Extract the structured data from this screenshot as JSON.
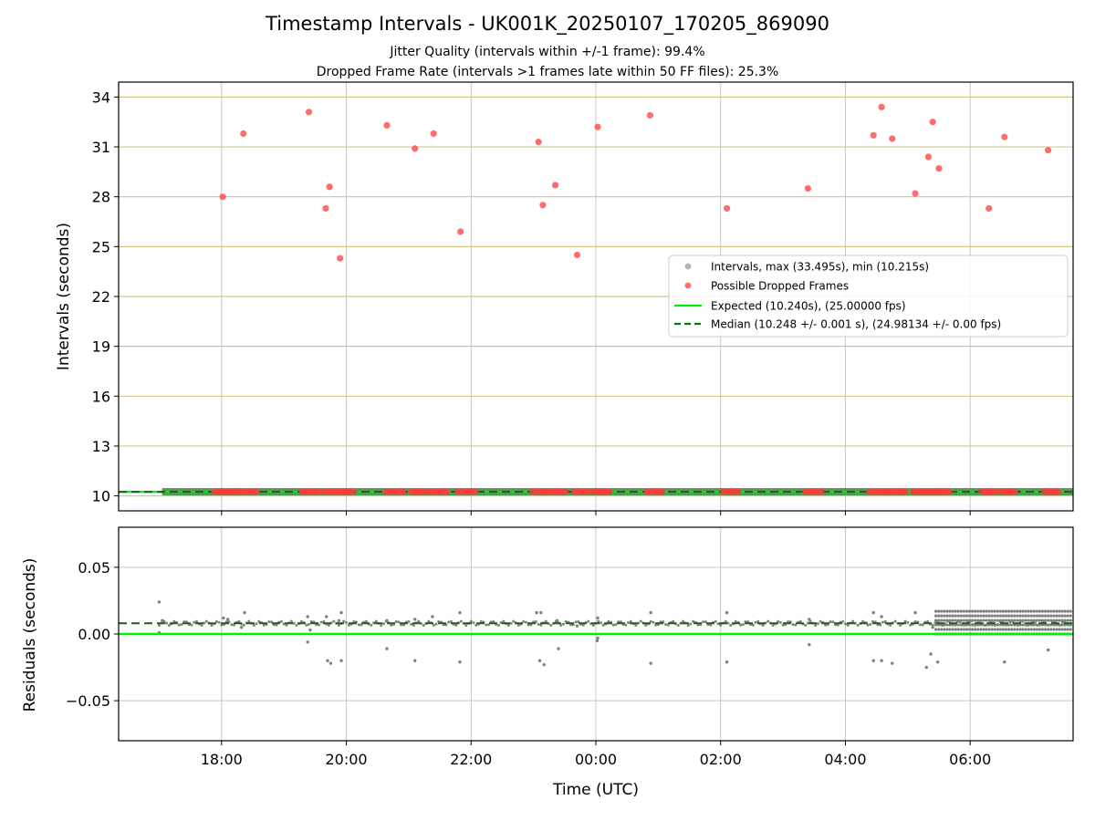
{
  "title": "Timestamp Intervals - UK001K_20250107_170205_869090",
  "subtitle_1": "Jitter Quality (intervals within +/-1 frame): 99.4%",
  "subtitle_2": "Dropped Frame Rate (intervals >1 frames late within 50 FF files): 25.3%",
  "colors": {
    "intervals": "#808080",
    "dropped": "#ff3b3b",
    "expected": "#00ee00",
    "median": "#008000",
    "hgrid_top": "#d4c68a",
    "vgrid": "#c8c8c8"
  },
  "chart_data": [
    {
      "type": "scatter",
      "panel": "top",
      "xlabel": "",
      "ylabel": "Intervals (seconds)",
      "x_unit": "hours since 00:00 UTC on 2025-01-08 (negative = 2025-01-07)",
      "xlim": [
        -7.65,
        7.65
      ],
      "ylim": [
        9.1,
        34.9
      ],
      "yticks": [
        10,
        13,
        16,
        19,
        22,
        25,
        28,
        31,
        34
      ],
      "ytick_labels": [
        "10",
        "13",
        "16",
        "19",
        "22",
        "25",
        "28",
        "31",
        "34"
      ],
      "grid": true,
      "legend_position": "center-right",
      "legend": [
        "Intervals, max (33.495s), min (10.215s)",
        "Possible Dropped Frames",
        "Expected (10.240s), (25.00000 fps)",
        "Median (10.248 +/- 0.001 s), (24.98134 +/- 0.00 fps)"
      ],
      "series": [
        {
          "name": "Intervals, max (33.495s), min (10.215s)",
          "style": "dense band of points",
          "x_range": [
            -6.95,
            7.65
          ],
          "y": 10.25
        },
        {
          "name": "Possible Dropped Frames",
          "points": [
            [
              -5.98,
              28.0
            ],
            [
              -5.65,
              31.8
            ],
            [
              -4.6,
              33.1
            ],
            [
              -4.33,
              27.3
            ],
            [
              -4.27,
              28.6
            ],
            [
              -4.1,
              24.3
            ],
            [
              -3.35,
              32.3
            ],
            [
              -2.9,
              30.9
            ],
            [
              -2.6,
              31.8
            ],
            [
              -2.17,
              25.9
            ],
            [
              -0.92,
              31.3
            ],
            [
              -0.85,
              27.5
            ],
            [
              -0.65,
              28.7
            ],
            [
              -0.3,
              24.5
            ],
            [
              0.03,
              32.2
            ],
            [
              0.87,
              32.9
            ],
            [
              2.1,
              27.3
            ],
            [
              3.4,
              28.5
            ],
            [
              4.45,
              31.7
            ],
            [
              4.58,
              33.4
            ],
            [
              4.75,
              31.5
            ],
            [
              5.12,
              28.2
            ],
            [
              5.33,
              30.4
            ],
            [
              5.4,
              32.5
            ],
            [
              5.5,
              29.7
            ],
            [
              6.3,
              27.3
            ],
            [
              6.55,
              31.6
            ],
            [
              7.25,
              30.8
            ]
          ],
          "baseline_points_y": 10.25,
          "baseline_points_x": [
            -6.05,
            -5.9,
            -5.78,
            -5.65,
            -5.5,
            -4.65,
            -4.5,
            -4.3,
            -4.18,
            -4.05,
            -3.95,
            -3.3,
            -3.15,
            -2.9,
            -2.8,
            -2.6,
            -2.45,
            -2.15,
            -2.0,
            -0.95,
            -0.82,
            -0.68,
            -0.55,
            -0.28,
            -0.15,
            0.05,
            0.15,
            0.88,
            1.0,
            2.1,
            2.22,
            3.42,
            3.55,
            4.45,
            4.58,
            4.7,
            4.82,
            4.9,
            5.15,
            5.28,
            5.38,
            5.5,
            5.6,
            6.25,
            6.35,
            6.55,
            6.65,
            7.25,
            7.35
          ]
        },
        {
          "name": "Expected (10.240s), (25.00000 fps)",
          "y": 10.24
        },
        {
          "name": "Median (10.248 +/- 0.001 s), (24.98134 +/- 0.00 fps)",
          "y": 10.248
        }
      ]
    },
    {
      "type": "scatter",
      "panel": "bottom",
      "xlabel": "Time (UTC)",
      "ylabel": "Residuals (seconds)",
      "x_unit": "hours since 00:00 UTC on 2025-01-08 (negative = 2025-01-07)",
      "xlim": [
        -7.65,
        7.65
      ],
      "ylim": [
        -0.08,
        0.08
      ],
      "yticks": [
        0.05,
        0.0,
        -0.05
      ],
      "ytick_labels": [
        "0.05",
        "0.00",
        "−0.05"
      ],
      "xticks": [
        -6,
        -4,
        -2,
        0,
        2,
        4,
        6
      ],
      "xtick_labels": [
        "18:00",
        "20:00",
        "22:00",
        "00:00",
        "02:00",
        "04:00",
        "06:00"
      ],
      "grid": true,
      "series": [
        {
          "name": "Residuals",
          "baseline_y": 0.008,
          "points": [
            [
              -7.0,
              0.024
            ],
            [
              -7.0,
              0.001
            ],
            [
              -6.95,
              0.01
            ],
            [
              -5.97,
              0.012
            ],
            [
              -5.9,
              0.011
            ],
            [
              -5.63,
              0.016
            ],
            [
              -5.68,
              0.005
            ],
            [
              -4.62,
              0.013
            ],
            [
              -4.62,
              -0.006
            ],
            [
              -4.58,
              0.003
            ],
            [
              -4.32,
              0.013
            ],
            [
              -4.3,
              -0.02
            ],
            [
              -4.25,
              -0.022
            ],
            [
              -4.08,
              0.016
            ],
            [
              -4.08,
              -0.02
            ],
            [
              -4.12,
              0.01
            ],
            [
              -3.35,
              0.01
            ],
            [
              -3.35,
              -0.011
            ],
            [
              -2.9,
              0.011
            ],
            [
              -2.9,
              -0.02
            ],
            [
              -2.62,
              0.013
            ],
            [
              -2.18,
              0.016
            ],
            [
              -2.18,
              -0.021
            ],
            [
              -0.95,
              0.016
            ],
            [
              -0.88,
              0.016
            ],
            [
              -0.9,
              -0.02
            ],
            [
              -0.83,
              -0.023
            ],
            [
              -0.6,
              -0.011
            ],
            [
              -0.62,
              0.01
            ],
            [
              -0.3,
              0.006
            ],
            [
              0.03,
              0.012
            ],
            [
              0.03,
              -0.003
            ],
            [
              0.02,
              -0.005
            ],
            [
              0.88,
              0.016
            ],
            [
              0.88,
              -0.022
            ],
            [
              2.1,
              0.016
            ],
            [
              2.1,
              -0.021
            ],
            [
              3.42,
              0.011
            ],
            [
              3.42,
              -0.008
            ],
            [
              4.45,
              0.016
            ],
            [
              4.45,
              -0.02
            ],
            [
              4.58,
              -0.02
            ],
            [
              4.58,
              0.013
            ],
            [
              4.75,
              -0.022
            ],
            [
              5.12,
              0.016
            ],
            [
              5.3,
              -0.025
            ],
            [
              5.37,
              -0.015
            ],
            [
              5.48,
              -0.021
            ],
            [
              5.4,
              0.005
            ],
            [
              6.55,
              -0.021
            ],
            [
              7.25,
              -0.012
            ]
          ],
          "dense_band_x_range": [
            5.45,
            7.65
          ],
          "dense_band_y_range": [
            0.0,
            0.017
          ]
        },
        {
          "name": "Expected",
          "y": 0.0
        },
        {
          "name": "Median",
          "y": 0.008
        }
      ]
    }
  ]
}
